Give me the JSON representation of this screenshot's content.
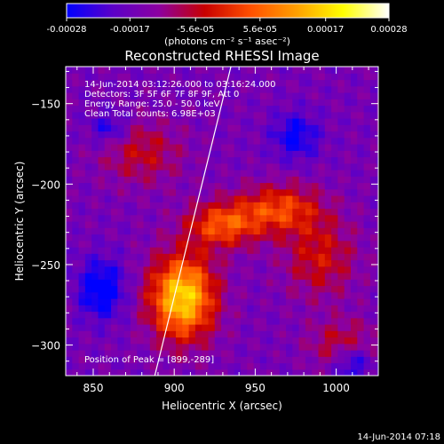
{
  "chart_data": {
    "type": "heatmap",
    "title": "Reconstructed RHESSI Image",
    "xlabel": "Heliocentric X (arcsec)",
    "ylabel": "Heliocentric Y (arcsec)",
    "xlim": [
      833,
      1026
    ],
    "ylim": [
      -319,
      -127
    ],
    "x_ticks": [
      850,
      900,
      950,
      1000
    ],
    "y_ticks": [
      -150,
      -200,
      -250,
      -300
    ],
    "colorbar": {
      "ticks": [
        -0.00028,
        -0.00017,
        -5.6e-05,
        5.6e-05,
        0.00017,
        0.00028
      ],
      "tick_labels": [
        "-0.00028",
        "-0.00017",
        "-5.6e-05",
        "5.6e-05",
        "0.00017",
        "0.00028"
      ],
      "range": [
        -0.00028,
        0.00028
      ],
      "units_label": "(photons cm⁻² s⁻¹ asec⁻²)"
    },
    "annotations": [
      "14-Jun-2014 03:12:26.000 to 03:16:24.000",
      "Detectors: 3F 5F 6F 7F 8F 9F, Att 0",
      "Energy Range: 25.0 - 50.0 keV",
      "Clean    Total counts: 6.98E+03"
    ],
    "peak_label": "Position of Peak = [899,-289]",
    "peak": [
      899,
      -289
    ],
    "limb_line": [
      [
        888,
        -319
      ],
      [
        935,
        -127
      ]
    ],
    "grid": false,
    "legend": "colorbar-top",
    "colors": {
      "colormap": [
        "#0000ff",
        "#5b00c8",
        "#8c00a0",
        "#c80000",
        "#ff5000",
        "#ffa000",
        "#ffff00",
        "#ffffff"
      ]
    }
  },
  "footer": {
    "timestamp": "14-Jun-2014 07:18"
  }
}
